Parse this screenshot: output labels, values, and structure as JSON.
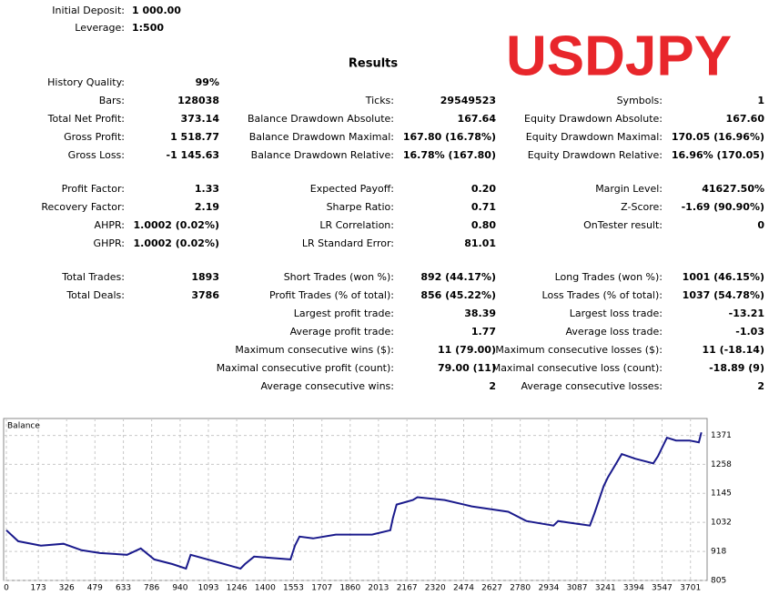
{
  "header": {
    "initial_deposit": {
      "label": "Initial Deposit:",
      "value": "1 000.00"
    },
    "leverage": {
      "label": "Leverage:",
      "value": "1:500"
    }
  },
  "symbol_banner": "USDJPY",
  "results_title": "Results",
  "sections": [
    [
      {
        "c1": [
          "History Quality:",
          "99%"
        ]
      },
      {
        "c1": [
          "Bars:",
          "128038"
        ],
        "c2": [
          "Ticks:",
          "29549523"
        ],
        "c3": [
          "Symbols:",
          "1"
        ]
      },
      {
        "c1": [
          "Total Net Profit:",
          "373.14"
        ],
        "c2": [
          "Balance Drawdown Absolute:",
          "167.64"
        ],
        "c3": [
          "Equity Drawdown Absolute:",
          "167.60"
        ]
      },
      {
        "c1": [
          "Gross Profit:",
          "1 518.77"
        ],
        "c2": [
          "Balance Drawdown Maximal:",
          "167.80 (16.78%)"
        ],
        "c3": [
          "Equity Drawdown Maximal:",
          "170.05 (16.96%)"
        ]
      },
      {
        "c1": [
          "Gross Loss:",
          "-1 145.63"
        ],
        "c2": [
          "Balance Drawdown Relative:",
          "16.78% (167.80)"
        ],
        "c3": [
          "Equity Drawdown Relative:",
          "16.96% (170.05)"
        ]
      }
    ],
    [
      {
        "c1": [
          "Profit Factor:",
          "1.33"
        ],
        "c2": [
          "Expected Payoff:",
          "0.20"
        ],
        "c3": [
          "Margin Level:",
          "41627.50%"
        ]
      },
      {
        "c1": [
          "Recovery Factor:",
          "2.19"
        ],
        "c2": [
          "Sharpe Ratio:",
          "0.71"
        ],
        "c3": [
          "Z-Score:",
          "-1.69 (90.90%)"
        ]
      },
      {
        "c1": [
          "AHPR:",
          "1.0002 (0.02%)"
        ],
        "c2": [
          "LR Correlation:",
          "0.80"
        ],
        "c3": [
          "OnTester result:",
          "0"
        ]
      },
      {
        "c1": [
          "GHPR:",
          "1.0002 (0.02%)"
        ],
        "c2": [
          "LR Standard Error:",
          "81.01"
        ]
      }
    ],
    [
      {
        "c1": [
          "Total Trades:",
          "1893"
        ],
        "c2": [
          "Short Trades (won %):",
          "892 (44.17%)"
        ],
        "c3": [
          "Long Trades (won %):",
          "1001 (46.15%)"
        ]
      },
      {
        "c1": [
          "Total Deals:",
          "3786"
        ],
        "c2": [
          "Profit Trades (% of total):",
          "856 (45.22%)"
        ],
        "c3": [
          "Loss Trades (% of total):",
          "1037 (54.78%)"
        ]
      },
      {
        "c2": [
          "Largest profit trade:",
          "38.39"
        ],
        "c3": [
          "Largest loss trade:",
          "-13.21"
        ]
      },
      {
        "c2": [
          "Average profit trade:",
          "1.77"
        ],
        "c3": [
          "Average loss trade:",
          "-1.03"
        ]
      },
      {
        "c2": [
          "Maximum consecutive wins ($):",
          "11 (79.00)"
        ],
        "c3": [
          "Maximum consecutive losses ($):",
          "11 (-18.14)"
        ]
      },
      {
        "c2": [
          "Maximal consecutive profit (count):",
          "79.00 (11)"
        ],
        "c3": [
          "Maximal consecutive loss (count):",
          "-18.89 (9)"
        ]
      },
      {
        "c2": [
          "Average consecutive wins:",
          "2"
        ],
        "c3": [
          "Average consecutive losses:",
          "2"
        ]
      }
    ]
  ],
  "chart_data": {
    "type": "line",
    "title": "Balance",
    "color": "#1a1a8c",
    "grid": true,
    "x": [
      0,
      64,
      187,
      309,
      407,
      506,
      653,
      727,
      800,
      898,
      972,
      997,
      1144,
      1267,
      1291,
      1340,
      1537,
      1561,
      1586,
      1659,
      1782,
      1978,
      2077,
      2091,
      2111,
      2199,
      2224,
      2371,
      2518,
      2715,
      2813,
      2960,
      2985,
      3157,
      3181,
      3206,
      3231,
      3255,
      3329,
      3402,
      3500,
      3525,
      3574,
      3623,
      3697,
      3746,
      3760
    ],
    "values": [
      1001,
      958,
      941,
      948,
      923,
      912,
      905,
      930,
      887,
      869,
      851,
      905,
      876,
      851,
      869,
      898,
      887,
      941,
      976,
      969,
      984,
      984,
      1001,
      1048,
      1101,
      1119,
      1130,
      1119,
      1094,
      1073,
      1037,
      1019,
      1037,
      1019,
      1066,
      1119,
      1173,
      1208,
      1298,
      1280,
      1262,
      1290,
      1362,
      1351,
      1351,
      1344,
      1383
    ],
    "xlim": [
      0,
      3786
    ],
    "ylim": [
      805,
      1437
    ],
    "xticks": [
      0,
      173,
      326,
      479,
      633,
      786,
      940,
      1093,
      1246,
      1400,
      1553,
      1707,
      1860,
      2013,
      2167,
      2320,
      2474,
      2627,
      2780,
      2934,
      3087,
      3241,
      3394,
      3547,
      3701
    ],
    "yticks": [
      805,
      918,
      1032,
      1145,
      1258,
      1371
    ]
  }
}
